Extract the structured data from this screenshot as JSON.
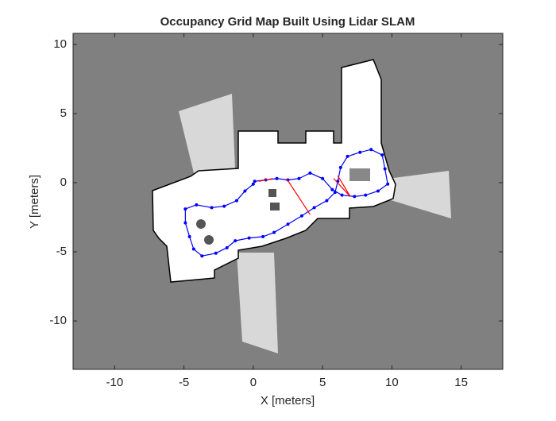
{
  "chart_data": {
    "type": "line",
    "title": "Occupancy Grid Map Built Using Lidar SLAM",
    "x_label": "X [meters]",
    "y_label": "Y [meters]",
    "xlim": [
      -13,
      18
    ],
    "ylim": [
      -13.5,
      10.8
    ],
    "xticks": [
      -10,
      -5,
      0,
      5,
      10,
      15
    ],
    "yticks": [
      -10,
      -5,
      0,
      5,
      10
    ],
    "grid": false,
    "series": [
      {
        "color": "#0000ff",
        "marker": true,
        "x": [
          0.1,
          0.9,
          1.7,
          2.5,
          3.3,
          4.1,
          5.0,
          5.7,
          6.4,
          7.3,
          8.1,
          9.0,
          9.7,
          9.5,
          9.3,
          8.5,
          7.7,
          6.8,
          6.3,
          6.1,
          5.9,
          5.3,
          4.4,
          3.5,
          2.5,
          1.5,
          0.7,
          -0.3,
          -1.3,
          -1.9,
          -2.7,
          -3.7,
          -4.3,
          -4.6,
          -4.9,
          -4.9,
          -4.1,
          -3.0,
          -2.1,
          -1.2,
          -0.6,
          0.0
        ],
        "y": [
          0.1,
          0.2,
          0.3,
          0.2,
          0.3,
          0.7,
          0.3,
          -0.5,
          -0.9,
          -1.0,
          -0.9,
          -0.6,
          -0.1,
          1.0,
          2.0,
          2.4,
          2.2,
          1.9,
          1.1,
          0.1,
          -0.7,
          -1.3,
          -1.8,
          -2.4,
          -3.0,
          -3.6,
          -3.9,
          -4.0,
          -4.2,
          -4.7,
          -5.1,
          -5.3,
          -4.8,
          -3.9,
          -2.9,
          -1.9,
          -1.6,
          -1.8,
          -1.7,
          -1.3,
          -0.6,
          -0.1
        ]
      },
      {
        "color": "#ff0000",
        "marker": false,
        "x": [
          2.4,
          4.1,
          null,
          5.8,
          7.0,
          null,
          6.1,
          7.0,
          null,
          0.4,
          1.4
        ],
        "y": [
          0.3,
          -2.3,
          null,
          0.3,
          -1.0,
          null,
          0.5,
          -1.0,
          null,
          0.1,
          0.3
        ]
      }
    ]
  }
}
